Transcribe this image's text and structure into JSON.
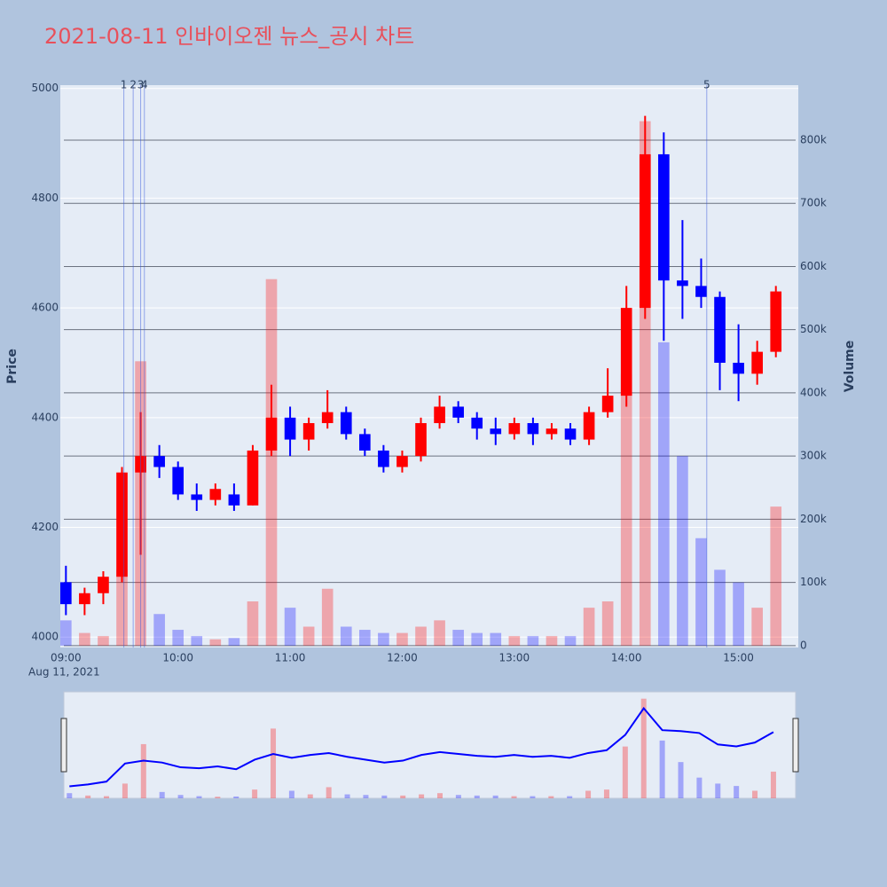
{
  "chart_data": {
    "type": "candlestick",
    "title": "2021-08-11 인바이오젠 뉴스_공시 차트",
    "y_title": "Price",
    "y2_title": "Volume",
    "x": [
      "09:00",
      "09:10",
      "09:20",
      "09:30",
      "09:40",
      "09:50",
      "10:00",
      "10:10",
      "10:20",
      "10:30",
      "10:40",
      "10:50",
      "11:00",
      "11:10",
      "11:20",
      "11:30",
      "11:40",
      "11:50",
      "12:00",
      "12:10",
      "12:20",
      "12:30",
      "12:40",
      "12:50",
      "13:00",
      "13:10",
      "13:20",
      "13:30",
      "13:40",
      "13:50",
      "14:00",
      "14:10",
      "14:20",
      "14:30",
      "14:40",
      "14:50",
      "15:00",
      "15:10",
      "15:20"
    ],
    "open": [
      4100,
      4060,
      4080,
      4110,
      4300,
      4330,
      4310,
      4260,
      4250,
      4260,
      4240,
      4340,
      4400,
      4360,
      4390,
      4410,
      4370,
      4340,
      4310,
      4330,
      4390,
      4420,
      4400,
      4380,
      4370,
      4390,
      4370,
      4380,
      4360,
      4410,
      4440,
      4600,
      4880,
      4650,
      4640,
      4620,
      4500,
      4480,
      4520
    ],
    "high": [
      4130,
      4090,
      4120,
      4310,
      4410,
      4350,
      4320,
      4280,
      4280,
      4280,
      4350,
      4460,
      4420,
      4400,
      4450,
      4420,
      4380,
      4350,
      4340,
      4400,
      4440,
      4430,
      4410,
      4400,
      4400,
      4400,
      4390,
      4390,
      4420,
      4490,
      4640,
      4950,
      4920,
      4760,
      4690,
      4630,
      4570,
      4540,
      4640
    ],
    "low": [
      4040,
      4040,
      4060,
      4100,
      4150,
      4290,
      4250,
      4230,
      4240,
      4230,
      4240,
      4330,
      4330,
      4340,
      4380,
      4360,
      4330,
      4300,
      4300,
      4320,
      4380,
      4390,
      4360,
      4350,
      4360,
      4350,
      4360,
      4350,
      4350,
      4400,
      4420,
      4580,
      4540,
      4580,
      4600,
      4450,
      4430,
      4460,
      4510
    ],
    "close": [
      4060,
      4080,
      4110,
      4300,
      4330,
      4310,
      4260,
      4250,
      4270,
      4240,
      4340,
      4400,
      4360,
      4390,
      4410,
      4370,
      4340,
      4310,
      4330,
      4390,
      4420,
      4400,
      4380,
      4370,
      4390,
      4370,
      4380,
      4360,
      4410,
      4440,
      4600,
      4880,
      4650,
      4640,
      4620,
      4500,
      4480,
      4520,
      4630
    ],
    "volume": [
      40000,
      20000,
      15000,
      120000,
      450000,
      50000,
      25000,
      15000,
      10000,
      12000,
      70000,
      580000,
      60000,
      30000,
      90000,
      30000,
      25000,
      20000,
      20000,
      30000,
      40000,
      25000,
      20000,
      20000,
      15000,
      15000,
      15000,
      15000,
      60000,
      70000,
      430000,
      830000,
      480000,
      300000,
      170000,
      120000,
      100000,
      60000,
      220000
    ],
    "up_color": "#ff0000",
    "down_color": "#0000ff",
    "xlim": [
      "08:57",
      "15:32"
    ],
    "xticks": [
      "09:00",
      "10:00",
      "11:00",
      "12:00",
      "13:00",
      "14:00",
      "15:00"
    ],
    "x_date_label": "Aug 11, 2021",
    "ylim": [
      3981,
      5006
    ],
    "yticks": [
      4000,
      4200,
      4400,
      4600,
      4800,
      5000
    ],
    "y2lim": [
      -3000,
      887000
    ],
    "y2ticks": [
      0,
      {
        "value": 100000,
        "label": "100k"
      },
      {
        "value": 200000,
        "label": "200k"
      },
      {
        "value": 300000,
        "label": "300k"
      },
      {
        "value": 400000,
        "label": "400k"
      },
      {
        "value": 500000,
        "label": "500k"
      },
      {
        "value": 600000,
        "label": "600k"
      },
      {
        "value": 700000,
        "label": "700k"
      },
      {
        "value": 800000,
        "label": "800k"
      }
    ],
    "events": [
      {
        "label": "1",
        "x": "09:31"
      },
      {
        "label": "2",
        "x": "09:36"
      },
      {
        "label": "3",
        "x": "09:40"
      },
      {
        "label": "4",
        "x": "09:42"
      },
      {
        "label": "5",
        "x": "14:43"
      }
    ],
    "grid": true,
    "range_slider": true
  }
}
